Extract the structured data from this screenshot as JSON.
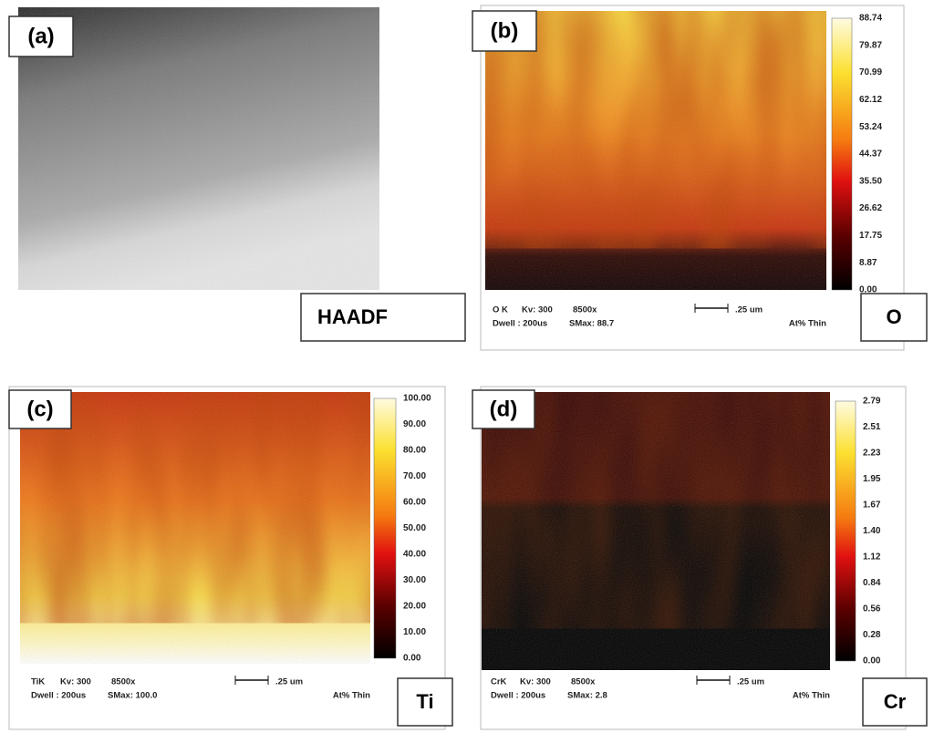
{
  "panels": [
    {
      "label": "(a)",
      "element": "HAADF"
    },
    {
      "label": "(b)",
      "element": "O",
      "colorbar": [
        "88.74",
        "79.87",
        "70.99",
        "62.12",
        "53.24",
        "44.37",
        "35.50",
        "26.62",
        "17.75",
        "8.87",
        "0.00"
      ],
      "footer": {
        "line": "O K",
        "kv": "Kv: 300",
        "mag": "8500x",
        "scale": ".25 um",
        "dwell": "Dwell : 200us",
        "smax": "SMax: 88.7",
        "mode": "At% Thin"
      }
    },
    {
      "label": "(c)",
      "element": "Ti",
      "colorbar": [
        "100.00",
        "90.00",
        "80.00",
        "70.00",
        "60.00",
        "50.00",
        "40.00",
        "30.00",
        "20.00",
        "10.00",
        "0.00"
      ],
      "footer": {
        "line": "TiK",
        "kv": "Kv: 300",
        "mag": "8500x",
        "scale": ".25 um",
        "dwell": "Dwell : 200us",
        "smax": "SMax: 100.0",
        "mode": "At% Thin"
      }
    },
    {
      "label": "(d)",
      "element": "Cr",
      "colorbar": [
        "2.79",
        "2.51",
        "2.23",
        "1.95",
        "1.67",
        "1.40",
        "1.12",
        "0.84",
        "0.56",
        "0.28",
        "0.00"
      ],
      "footer": {
        "line": "CrK",
        "kv": "Kv: 300",
        "mag": "8500x",
        "scale": ".25 um",
        "dwell": "Dwell : 200us",
        "smax": "SMax: 2.8",
        "mode": "At% Thin"
      }
    }
  ]
}
